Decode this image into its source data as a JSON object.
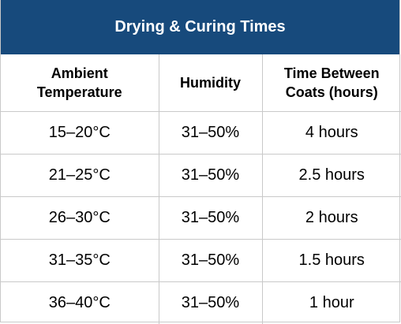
{
  "title": "Drying & Curing Times",
  "headers": {
    "temperature": "Ambient\nTemperature",
    "humidity": "Humidity",
    "time": "Time Between\nCoats (hours)"
  },
  "rows": [
    {
      "temperature": "15–20°C",
      "humidity": "31–50%",
      "time": "4 hours"
    },
    {
      "temperature": "21–25°C",
      "humidity": "31–50%",
      "time": "2.5 hours"
    },
    {
      "temperature": "26–30°C",
      "humidity": "31–50%",
      "time": "2 hours"
    },
    {
      "temperature": "31–35°C",
      "humidity": "31–50%",
      "time": "1.5 hours"
    },
    {
      "temperature": "36–40°C",
      "humidity": "31–50%",
      "time": "1 hour"
    }
  ],
  "colors": {
    "title_bar": "#174a7c",
    "title_text": "#ffffff",
    "grid": "#c9c9c9"
  }
}
